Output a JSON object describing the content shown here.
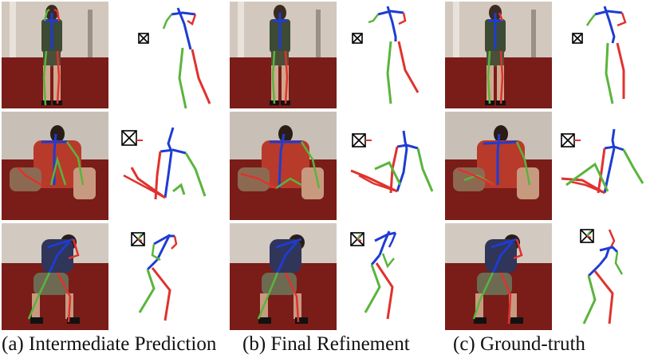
{
  "figure": {
    "captions": [
      "(a) Intermediate Prediction",
      "(b) Final Refinement",
      "(c) Ground-truth"
    ],
    "colors": {
      "torso": "#1e3cd2",
      "left_limb": "#5ab43c",
      "right_limb": "#e0322d",
      "camera": "#000000",
      "carpet": "#7d1e1a",
      "wall": "#cfc6bd"
    }
  }
}
